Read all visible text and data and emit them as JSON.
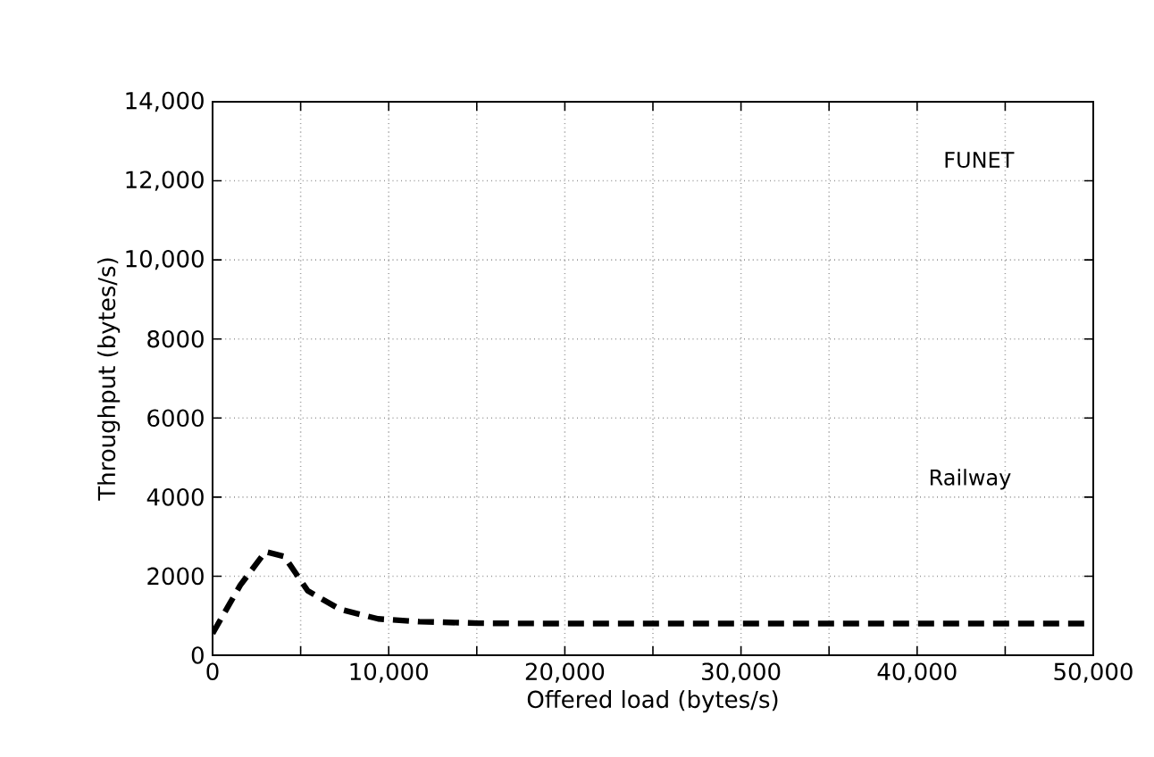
{
  "chart_data": {
    "type": "line",
    "xlabel": "Offered load (bytes/s)",
    "ylabel": "Throughput (bytes/s)",
    "x": [
      0,
      1570,
      3000,
      4070,
      5400,
      7240,
      9400,
      11740,
      15070,
      20000,
      30000,
      40000,
      50000
    ],
    "series": [
      {
        "color": "#000000",
        "line_style": "dashed",
        "values": [
          550,
          1770,
          2620,
          2500,
          1630,
          1160,
          920,
          850,
          810,
          800,
          800,
          800,
          800
        ]
      }
    ],
    "xlim": [
      0,
      50000
    ],
    "ylim": [
      0,
      14000
    ],
    "xticks": [
      0,
      {
        "value": 5000,
        "label": null
      },
      {
        "value": 10000,
        "label": "10,000"
      },
      {
        "value": 15000,
        "label": null
      },
      {
        "value": 20000,
        "label": "20,000"
      },
      {
        "value": 25000,
        "label": null
      },
      {
        "value": 30000,
        "label": "30,000"
      },
      {
        "value": 35000,
        "label": null
      },
      {
        "value": 40000,
        "label": "40,000"
      },
      {
        "value": 45000,
        "label": null
      },
      {
        "value": 50000,
        "label": "50,000"
      }
    ],
    "yticks": [
      0,
      2000,
      4000,
      6000,
      8000,
      {
        "value": 10000,
        "label": "10,000"
      },
      {
        "value": 12000,
        "label": "12,000"
      },
      {
        "value": 14000,
        "label": "14,000"
      }
    ],
    "grid": true,
    "marker": "none",
    "annotations": [
      "FUNET",
      "Railway"
    ]
  }
}
